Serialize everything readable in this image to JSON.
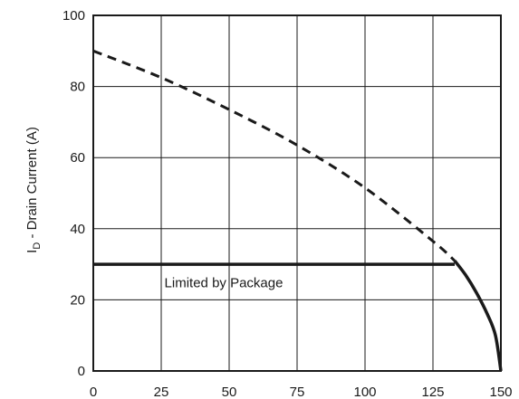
{
  "chart_data": {
    "type": "line",
    "title": "",
    "xlabel": "",
    "ylabel": "I_D - Drain Current (A)",
    "ylabel_main": "I",
    "ylabel_sub": "D",
    "ylabel_rest": " - Drain Current (A)",
    "xlim": [
      0,
      150
    ],
    "ylim": [
      0,
      100
    ],
    "x_ticks": [
      0,
      25,
      50,
      75,
      100,
      125,
      150
    ],
    "y_ticks": [
      0,
      20,
      40,
      60,
      80,
      100
    ],
    "grid": true,
    "annotation": "Limited by Package",
    "series": [
      {
        "style": "dashed",
        "x": [
          0,
          25,
          50,
          75,
          100,
          125,
          133
        ],
        "y": [
          90,
          82.5,
          73.5,
          63.5,
          51.5,
          36.5,
          31
        ]
      },
      {
        "style": "solid",
        "x": [
          0,
          133
        ],
        "y": [
          30,
          30
        ]
      },
      {
        "style": "solid",
        "x": [
          133,
          137,
          141,
          145,
          148,
          150
        ],
        "y": [
          31,
          27,
          22,
          16,
          10,
          0
        ]
      }
    ]
  }
}
